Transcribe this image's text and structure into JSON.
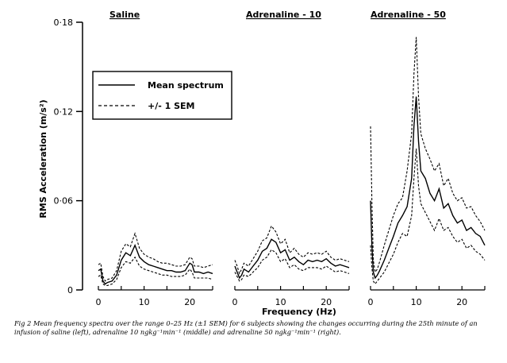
{
  "chart_data": {
    "type": "line",
    "ylabel": "RMS Acceleration (m/s²)",
    "xlabel": "Frequency (Hz)",
    "ylim": [
      0,
      0.18
    ],
    "y_ticks": [
      "0",
      "0·06",
      "0·12",
      "0·18"
    ],
    "y_tick_values": [
      0,
      0.06,
      0.12,
      0.18
    ],
    "xlim": [
      0,
      25
    ],
    "x_ticks": [
      "0",
      "10",
      "20"
    ],
    "x_tick_values": [
      0,
      10,
      20
    ],
    "legend": {
      "position": "top-left",
      "entries": [
        {
          "label": "Mean spectrum",
          "style": "solid"
        },
        {
          "label": "+/- 1 SEM",
          "style": "dashed"
        }
      ]
    },
    "panels": [
      {
        "title": "Saline",
        "x": [
          0,
          0.5,
          1,
          1.5,
          2,
          3,
          4,
          5,
          6,
          7,
          8,
          9,
          10,
          11,
          12,
          13,
          14,
          15,
          16,
          17,
          18,
          19,
          20,
          20.5,
          21,
          22,
          23,
          24,
          25
        ],
        "mean": [
          0.013,
          0.014,
          0.006,
          0.004,
          0.005,
          0.006,
          0.01,
          0.02,
          0.025,
          0.023,
          0.03,
          0.022,
          0.019,
          0.017,
          0.016,
          0.015,
          0.014,
          0.013,
          0.013,
          0.012,
          0.012,
          0.013,
          0.018,
          0.017,
          0.012,
          0.012,
          0.011,
          0.012,
          0.011
        ],
        "upper": [
          0.017,
          0.018,
          0.009,
          0.006,
          0.007,
          0.008,
          0.013,
          0.026,
          0.031,
          0.029,
          0.038,
          0.028,
          0.024,
          0.022,
          0.021,
          0.019,
          0.018,
          0.018,
          0.017,
          0.016,
          0.016,
          0.017,
          0.022,
          0.021,
          0.016,
          0.016,
          0.015,
          0.016,
          0.017
        ],
        "lower": [
          0.009,
          0.01,
          0.004,
          0.003,
          0.003,
          0.004,
          0.007,
          0.015,
          0.019,
          0.018,
          0.022,
          0.016,
          0.014,
          0.013,
          0.012,
          0.011,
          0.01,
          0.01,
          0.009,
          0.009,
          0.009,
          0.01,
          0.014,
          0.012,
          0.008,
          0.008,
          0.008,
          0.008,
          0.007
        ]
      },
      {
        "title": "Adrenaline - 10",
        "x": [
          0,
          0.5,
          1,
          1.5,
          2,
          3,
          4,
          5,
          6,
          7,
          8,
          9,
          10,
          11,
          12,
          13,
          14,
          15,
          16,
          17,
          18,
          19,
          20,
          21,
          22,
          23,
          24,
          25
        ],
        "mean": [
          0.016,
          0.012,
          0.008,
          0.01,
          0.014,
          0.012,
          0.016,
          0.02,
          0.026,
          0.028,
          0.034,
          0.032,
          0.025,
          0.027,
          0.02,
          0.022,
          0.019,
          0.017,
          0.02,
          0.019,
          0.02,
          0.019,
          0.021,
          0.018,
          0.016,
          0.017,
          0.016,
          0.015
        ],
        "upper": [
          0.02,
          0.016,
          0.011,
          0.014,
          0.018,
          0.016,
          0.021,
          0.026,
          0.033,
          0.035,
          0.043,
          0.039,
          0.031,
          0.034,
          0.025,
          0.028,
          0.024,
          0.022,
          0.025,
          0.024,
          0.025,
          0.024,
          0.026,
          0.022,
          0.02,
          0.021,
          0.02,
          0.019
        ],
        "lower": [
          0.012,
          0.009,
          0.006,
          0.007,
          0.01,
          0.009,
          0.012,
          0.015,
          0.02,
          0.022,
          0.027,
          0.025,
          0.019,
          0.021,
          0.015,
          0.017,
          0.014,
          0.013,
          0.015,
          0.015,
          0.015,
          0.014,
          0.016,
          0.014,
          0.012,
          0.013,
          0.012,
          0.011
        ]
      },
      {
        "title": "Adrenaline - 50",
        "x": [
          0,
          0.3,
          0.6,
          1,
          1.5,
          2,
          3,
          4,
          5,
          6,
          7,
          8,
          9,
          9.5,
          10,
          10.5,
          11,
          12,
          13,
          14,
          15,
          16,
          17,
          18,
          19,
          20,
          21,
          22,
          23,
          24,
          25
        ],
        "mean": [
          0.06,
          0.03,
          0.012,
          0.008,
          0.01,
          0.013,
          0.02,
          0.028,
          0.036,
          0.045,
          0.05,
          0.056,
          0.075,
          0.11,
          0.13,
          0.1,
          0.08,
          0.075,
          0.065,
          0.06,
          0.068,
          0.055,
          0.058,
          0.05,
          0.045,
          0.047,
          0.04,
          0.042,
          0.038,
          0.036,
          0.03
        ],
        "upper": [
          0.11,
          0.06,
          0.02,
          0.012,
          0.014,
          0.019,
          0.03,
          0.04,
          0.05,
          0.058,
          0.062,
          0.08,
          0.105,
          0.145,
          0.17,
          0.13,
          0.105,
          0.095,
          0.088,
          0.08,
          0.085,
          0.07,
          0.075,
          0.065,
          0.06,
          0.062,
          0.055,
          0.056,
          0.05,
          0.046,
          0.04
        ],
        "lower": [
          0.03,
          0.015,
          0.006,
          0.004,
          0.006,
          0.008,
          0.012,
          0.018,
          0.024,
          0.032,
          0.038,
          0.036,
          0.05,
          0.075,
          0.095,
          0.07,
          0.058,
          0.052,
          0.046,
          0.04,
          0.048,
          0.04,
          0.042,
          0.036,
          0.032,
          0.034,
          0.028,
          0.03,
          0.026,
          0.024,
          0.02
        ]
      }
    ]
  },
  "caption": "Fig 2   Mean frequency spectra over the range 0–25 Hz (±1 SEM) for 6 subjects showing the changes occurring during the 25th minute of an infusion of saline (left), adrenaline 10 ngkg⁻¹min⁻¹ (middle) and adrenaline 50 ngkg⁻¹min⁻¹ (right)."
}
